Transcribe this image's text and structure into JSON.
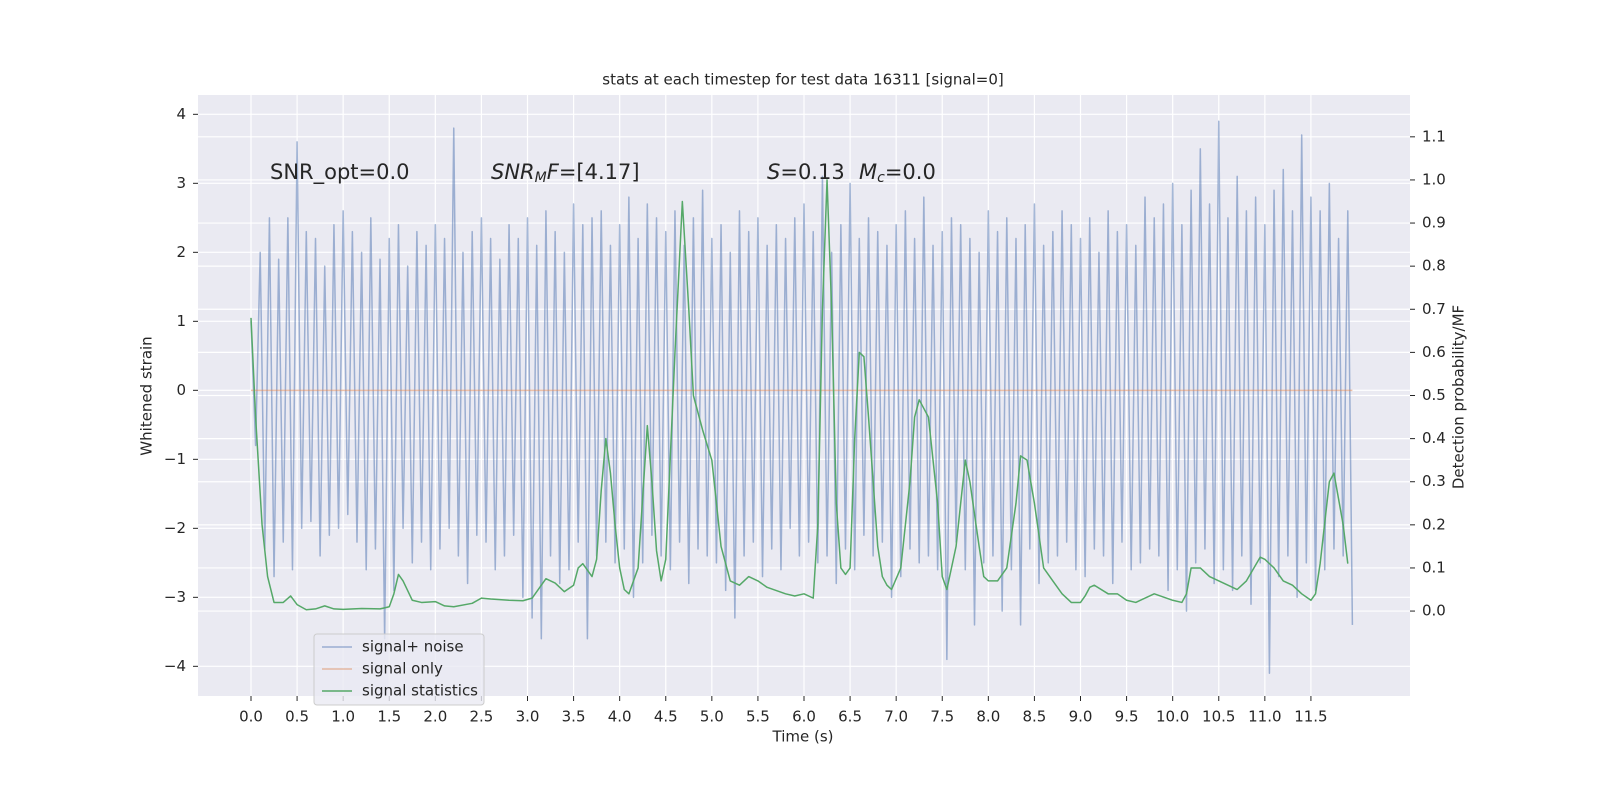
{
  "chart_data": {
    "type": "line",
    "title": "stats at each timestep for test data 16311 [signal=0]",
    "x_label": "Time (s)",
    "y_label": "Whitened strain",
    "y2_label": "Detection probability/MF",
    "xlim": [
      -0.575,
      12.575
    ],
    "ylim": [
      -4.43,
      4.28
    ],
    "y2lim": [
      -0.197,
      1.197
    ],
    "grid": true,
    "legend": "lower left",
    "xticks": [
      {
        "value": 0,
        "label": "0.0"
      },
      0.5,
      {
        "value": 1,
        "label": "1.0"
      },
      1.5,
      {
        "value": 2,
        "label": "2.0"
      },
      2.5,
      {
        "value": 3,
        "label": "3.0"
      },
      3.5,
      {
        "value": 4,
        "label": "4.0"
      },
      4.5,
      {
        "value": 5,
        "label": "5.0"
      },
      5.5,
      {
        "value": 6,
        "label": "6.0"
      },
      6.5,
      {
        "value": 7,
        "label": "7.0"
      },
      7.5,
      {
        "value": 8,
        "label": "8.0"
      },
      8.5,
      {
        "value": 9,
        "label": "9.0"
      },
      9.5,
      {
        "value": 10,
        "label": "10.0"
      },
      10.5,
      {
        "value": 11,
        "label": "11.0"
      },
      11.5
    ],
    "yticks": [
      {
        "value": -4,
        "label": "−4"
      },
      {
        "value": -3,
        "label": "−3"
      },
      {
        "value": -2,
        "label": "−2"
      },
      {
        "value": -1,
        "label": "−1"
      },
      0,
      1,
      2,
      3,
      4
    ],
    "y2ticks": [
      {
        "value": 0,
        "label": "0.0"
      },
      0.1,
      0.2,
      0.3,
      0.4,
      0.5,
      0.6,
      0.7,
      0.8,
      0.9,
      {
        "value": 1,
        "label": "1.0"
      },
      1.1
    ],
    "annotations": [
      {
        "parts": [
          {
            "text": "SNR_opt=0.0"
          }
        ]
      },
      {
        "parts": [
          {
            "text": "SNR",
            "style": "italic"
          },
          {
            "text": "M",
            "style": "sub"
          },
          {
            "text": "F",
            "style": "italic"
          },
          {
            "text": "=[4.17]"
          }
        ]
      },
      {
        "parts": [
          {
            "text": "S",
            "style": "italic"
          },
          {
            "text": "=0.13"
          }
        ]
      },
      {
        "parts": [
          {
            "text": "M",
            "style": "italic"
          },
          {
            "text": "c",
            "style": "sub"
          },
          {
            "text": "=0.0"
          }
        ]
      }
    ],
    "series": [
      {
        "name": "signal+ noise",
        "color": "#4c72b0",
        "opacity": 0.5,
        "x": [
          0,
          0.05,
          0.1,
          0.15,
          0.2,
          0.25,
          0.3,
          0.35,
          0.4,
          0.45,
          0.5,
          0.55,
          0.6,
          0.65,
          0.7,
          0.75,
          0.8,
          0.85,
          0.9,
          0.95,
          1,
          1.05,
          1.1,
          1.15,
          1.2,
          1.25,
          1.3,
          1.35,
          1.4,
          1.45,
          1.5,
          1.55,
          1.6,
          1.65,
          1.7,
          1.75,
          1.8,
          1.85,
          1.9,
          1.95,
          2,
          2.05,
          2.1,
          2.15,
          2.2,
          2.25,
          2.3,
          2.35,
          2.4,
          2.45,
          2.5,
          2.55,
          2.6,
          2.65,
          2.7,
          2.75,
          2.8,
          2.85,
          2.9,
          2.95,
          3,
          3.05,
          3.1,
          3.15,
          3.2,
          3.25,
          3.3,
          3.35,
          3.4,
          3.45,
          3.5,
          3.55,
          3.6,
          3.65,
          3.7,
          3.75,
          3.8,
          3.85,
          3.9,
          3.95,
          4,
          4.05,
          4.1,
          4.15,
          4.2,
          4.25,
          4.3,
          4.35,
          4.4,
          4.45,
          4.5,
          4.55,
          4.6,
          4.65,
          4.7,
          4.75,
          4.8,
          4.85,
          4.9,
          4.95,
          5,
          5.05,
          5.1,
          5.15,
          5.2,
          5.25,
          5.3,
          5.35,
          5.4,
          5.45,
          5.5,
          5.55,
          5.6,
          5.65,
          5.7,
          5.75,
          5.8,
          5.85,
          5.9,
          5.95,
          6,
          6.05,
          6.1,
          6.15,
          6.2,
          6.25,
          6.3,
          6.35,
          6.4,
          6.45,
          6.5,
          6.55,
          6.6,
          6.65,
          6.7,
          6.75,
          6.8,
          6.85,
          6.9,
          6.95,
          7,
          7.05,
          7.1,
          7.15,
          7.2,
          7.25,
          7.3,
          7.35,
          7.4,
          7.45,
          7.5,
          7.55,
          7.6,
          7.65,
          7.7,
          7.75,
          7.8,
          7.85,
          7.9,
          7.95,
          8,
          8.05,
          8.1,
          8.15,
          8.2,
          8.25,
          8.3,
          8.35,
          8.4,
          8.45,
          8.5,
          8.55,
          8.6,
          8.65,
          8.7,
          8.75,
          8.8,
          8.85,
          8.9,
          8.95,
          9,
          9.05,
          9.1,
          9.15,
          9.2,
          9.25,
          9.3,
          9.35,
          9.4,
          9.45,
          9.5,
          9.55,
          9.6,
          9.65,
          9.7,
          9.75,
          9.8,
          9.85,
          9.9,
          9.95,
          10,
          10.05,
          10.1,
          10.15,
          10.2,
          10.25,
          10.3,
          10.35,
          10.4,
          10.45,
          10.5,
          10.55,
          10.6,
          10.65,
          10.7,
          10.75,
          10.8,
          10.85,
          10.9,
          10.95,
          11,
          11.05,
          11.1,
          11.15,
          11.2,
          11.25,
          11.3,
          11.35,
          11.4,
          11.45,
          11.5,
          11.55,
          11.6,
          11.65,
          11.7,
          11.75,
          11.8,
          11.85,
          11.9,
          11.95
        ],
        "values": [
          1.0,
          -0.8,
          2.0,
          -2.3,
          2.5,
          -2.7,
          1.9,
          -2.2,
          2.5,
          -2.6,
          3.6,
          -2.0,
          2.3,
          -1.9,
          2.2,
          -2.4,
          1.8,
          -2.1,
          2.4,
          -2.0,
          2.6,
          -1.8,
          2.3,
          -2.2,
          2.0,
          -2.6,
          2.5,
          -2.3,
          1.9,
          -3.6,
          2.2,
          -2.9,
          2.4,
          -2.0,
          1.8,
          -2.5,
          2.3,
          -2.2,
          2.1,
          -2.6,
          2.4,
          -2.3,
          2.2,
          -2.0,
          3.8,
          -2.4,
          2.0,
          -2.8,
          2.3,
          -2.1,
          2.5,
          -2.2,
          2.2,
          -2.6,
          1.9,
          -2.4,
          2.4,
          -2.1,
          2.2,
          -3.0,
          2.5,
          -3.3,
          2.1,
          -3.6,
          2.6,
          -2.4,
          2.3,
          -2.8,
          2.0,
          -2.6,
          2.7,
          -2.2,
          2.4,
          -3.6,
          2.5,
          -2.4,
          2.6,
          -2.2,
          2.1,
          -2.5,
          2.4,
          -2.3,
          2.8,
          -3.0,
          2.2,
          -2.5,
          2.7,
          -2.1,
          2.5,
          -2.4,
          2.3,
          -2.6,
          2.6,
          -2.2,
          2.1,
          -2.8,
          2.5,
          -2.3,
          2.9,
          -2.4,
          2.2,
          -2.5,
          2.4,
          -2.9,
          2.0,
          -3.3,
          2.6,
          -2.4,
          2.3,
          -2.2,
          2.5,
          -2.7,
          2.1,
          -2.3,
          2.4,
          -2.6,
          2.2,
          -2.0,
          2.5,
          -2.4,
          2.7,
          -2.2,
          2.3,
          -2.5,
          3.1,
          -2.4,
          2.0,
          -2.8,
          2.4,
          -2.3,
          3.0,
          -2.6,
          2.2,
          -2.1,
          2.5,
          -2.4,
          2.3,
          -2.2,
          2.1,
          -3.0,
          2.4,
          -2.7,
          2.6,
          -2.3,
          2.2,
          -2.5,
          2.8,
          -2.4,
          2.1,
          -2.6,
          2.3,
          -3.9,
          2.5,
          -2.2,
          2.4,
          -2.6,
          2.2,
          -3.4,
          2.0,
          -2.5,
          2.6,
          -2.4,
          2.3,
          -3.2,
          2.5,
          -2.6,
          2.2,
          -3.4,
          2.4,
          -2.3,
          2.7,
          -2.8,
          2.1,
          -2.5,
          2.3,
          -2.4,
          2.6,
          -2.2,
          2.4,
          -2.6,
          2.2,
          -2.7,
          2.5,
          -2.3,
          2.0,
          -2.4,
          2.6,
          -2.8,
          2.3,
          -2.2,
          2.4,
          -2.6,
          2.1,
          -2.5,
          2.8,
          -2.3,
          2.5,
          -2.4,
          2.7,
          -2.9,
          3.0,
          -2.6,
          2.4,
          -3.2,
          2.9,
          -2.5,
          3.5,
          -2.3,
          2.7,
          -2.8,
          3.9,
          -2.6,
          2.5,
          -2.9,
          3.1,
          -2.4,
          2.6,
          -3.1,
          2.8,
          -2.5,
          2.4,
          -4.1,
          2.9,
          -2.7,
          3.2,
          -2.4,
          2.6,
          -3.0,
          3.7,
          -2.5,
          2.8,
          -2.9,
          2.6,
          -2.6,
          3.0,
          -2.3,
          2.2,
          -2.4,
          2.6,
          -3.4
        ]
      },
      {
        "name": "signal only",
        "color": "#dd8452",
        "opacity": 0.5,
        "x": [
          0,
          11.95
        ],
        "values": [
          0,
          0
        ]
      },
      {
        "name": "signal statistics",
        "color": "#55a868",
        "opacity": 1,
        "axis": "y2",
        "x": [
          0,
          0.05,
          0.12,
          0.18,
          0.25,
          0.35,
          0.43,
          0.5,
          0.6,
          0.7,
          0.8,
          0.9,
          1.0,
          1.2,
          1.4,
          1.5,
          1.55,
          1.6,
          1.65,
          1.75,
          1.85,
          2.0,
          2.1,
          2.2,
          2.4,
          2.5,
          2.6,
          2.8,
          2.95,
          3.05,
          3.15,
          3.2,
          3.3,
          3.4,
          3.5,
          3.55,
          3.6,
          3.7,
          3.75,
          3.8,
          3.85,
          3.9,
          3.95,
          4.0,
          4.05,
          4.1,
          4.2,
          4.3,
          4.35,
          4.4,
          4.45,
          4.5,
          4.6,
          4.68,
          4.75,
          4.8,
          4.9,
          5.0,
          5.05,
          5.1,
          5.2,
          5.3,
          5.4,
          5.5,
          5.6,
          5.8,
          5.9,
          6.0,
          6.1,
          6.15,
          6.2,
          6.25,
          6.3,
          6.35,
          6.4,
          6.45,
          6.5,
          6.55,
          6.6,
          6.65,
          6.7,
          6.75,
          6.8,
          6.85,
          6.9,
          6.95,
          7.05,
          7.15,
          7.2,
          7.25,
          7.35,
          7.45,
          7.5,
          7.55,
          7.65,
          7.75,
          7.8,
          7.9,
          7.95,
          8.0,
          8.1,
          8.2,
          8.3,
          8.35,
          8.42,
          8.5,
          8.6,
          8.7,
          8.8,
          8.9,
          9.0,
          9.05,
          9.1,
          9.15,
          9.3,
          9.4,
          9.5,
          9.6,
          9.8,
          10.0,
          10.1,
          10.15,
          10.2,
          10.3,
          10.4,
          10.6,
          10.7,
          10.8,
          10.95,
          11.0,
          11.1,
          11.2,
          11.3,
          11.4,
          11.5,
          11.55,
          11.6,
          11.7,
          11.75,
          11.85,
          11.9
        ],
        "values": [
          0.68,
          0.45,
          0.2,
          0.08,
          0.02,
          0.02,
          0.035,
          0.015,
          0.003,
          0.005,
          0.012,
          0.005,
          0.004,
          0.006,
          0.005,
          0.01,
          0.04,
          0.085,
          0.07,
          0.025,
          0.02,
          0.022,
          0.012,
          0.01,
          0.018,
          0.03,
          0.028,
          0.025,
          0.024,
          0.03,
          0.06,
          0.075,
          0.065,
          0.045,
          0.06,
          0.1,
          0.11,
          0.08,
          0.12,
          0.28,
          0.4,
          0.32,
          0.2,
          0.1,
          0.05,
          0.04,
          0.1,
          0.43,
          0.3,
          0.14,
          0.07,
          0.12,
          0.6,
          0.95,
          0.7,
          0.5,
          0.42,
          0.35,
          0.25,
          0.15,
          0.07,
          0.06,
          0.08,
          0.07,
          0.055,
          0.04,
          0.035,
          0.04,
          0.03,
          0.2,
          0.7,
          1.0,
          0.7,
          0.25,
          0.1,
          0.085,
          0.1,
          0.4,
          0.6,
          0.59,
          0.45,
          0.3,
          0.15,
          0.08,
          0.06,
          0.05,
          0.1,
          0.3,
          0.45,
          0.49,
          0.45,
          0.25,
          0.08,
          0.05,
          0.15,
          0.35,
          0.3,
          0.15,
          0.08,
          0.07,
          0.07,
          0.1,
          0.25,
          0.36,
          0.35,
          0.25,
          0.1,
          0.07,
          0.04,
          0.02,
          0.02,
          0.035,
          0.055,
          0.06,
          0.04,
          0.04,
          0.025,
          0.02,
          0.04,
          0.025,
          0.02,
          0.04,
          0.1,
          0.1,
          0.08,
          0.06,
          0.05,
          0.07,
          0.125,
          0.12,
          0.1,
          0.07,
          0.06,
          0.04,
          0.025,
          0.04,
          0.11,
          0.3,
          0.32,
          0.2,
          0.11
        ]
      }
    ]
  }
}
